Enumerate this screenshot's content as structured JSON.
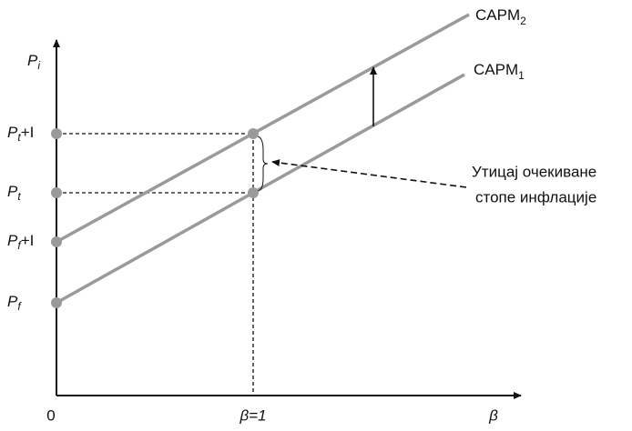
{
  "axes": {
    "y_label": {
      "main": "P",
      "sub": "i"
    },
    "origin": "0",
    "x_mark": "β=1",
    "x_label": "β"
  },
  "levels": [
    {
      "main": "P",
      "sub": "t",
      "suffix": "+I"
    },
    {
      "main": "P",
      "sub": "t",
      "suffix": ""
    },
    {
      "main": "P",
      "sub": "f",
      "suffix": "+I"
    },
    {
      "main": "P",
      "sub": "f",
      "suffix": ""
    }
  ],
  "lines": [
    {
      "main": "CAPM",
      "sub": "2"
    },
    {
      "main": "CAPM",
      "sub": "1"
    }
  ],
  "annotation": [
    "Утицај очекиване",
    "стопе инфлације"
  ]
}
